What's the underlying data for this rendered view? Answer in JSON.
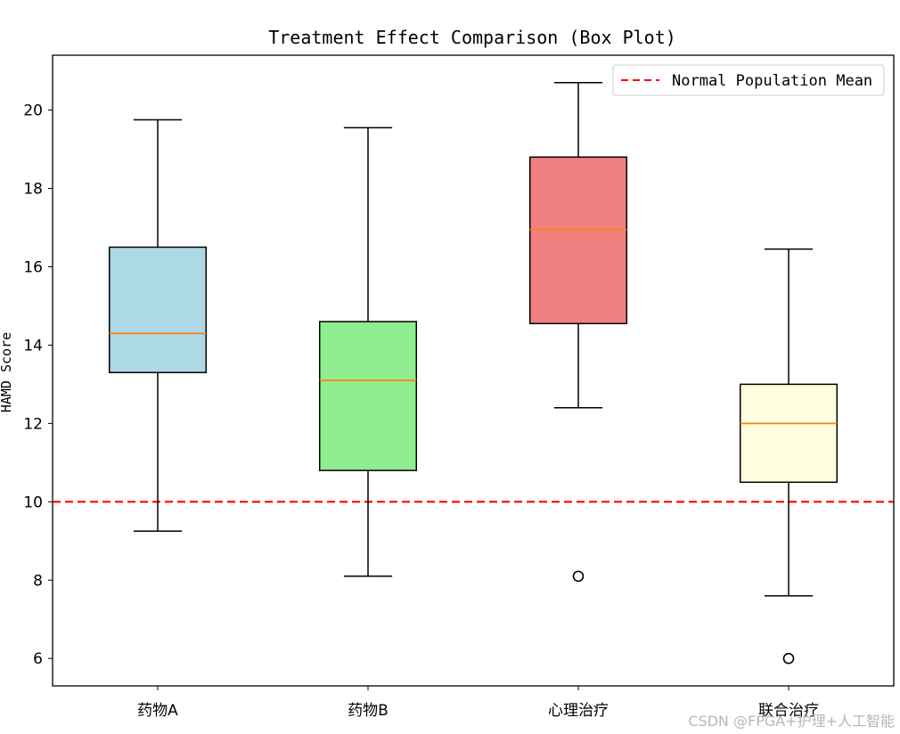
{
  "chart_data": {
    "type": "box",
    "title": "Treatment Effect Comparison (Box Plot)",
    "xlabel": "",
    "ylabel": "HAMD Score",
    "ylim": [
      5.3,
      21.4
    ],
    "yticks": [
      6,
      8,
      10,
      12,
      14,
      16,
      18,
      20
    ],
    "grid": false,
    "legend_position": "top-right",
    "categories": [
      "药物A",
      "药物B",
      "心理治疗",
      "联合治疗"
    ],
    "boxes": [
      {
        "category": "药物A",
        "whisker_low": 9.25,
        "q1": 13.3,
        "median": 14.3,
        "q3": 16.5,
        "whisker_high": 19.75,
        "outliers": [],
        "fill": "#add8e6"
      },
      {
        "category": "药物B",
        "whisker_low": 8.1,
        "q1": 10.8,
        "median": 13.1,
        "q3": 14.6,
        "whisker_high": 19.55,
        "outliers": [],
        "fill": "#90ee90"
      },
      {
        "category": "心理治疗",
        "whisker_low": 12.4,
        "q1": 14.55,
        "median": 16.95,
        "q3": 18.8,
        "whisker_high": 20.7,
        "outliers": [
          8.1
        ],
        "fill": "#f08080"
      },
      {
        "category": "联合治疗",
        "whisker_low": 7.6,
        "q1": 10.5,
        "median": 12.0,
        "q3": 13.0,
        "whisker_high": 16.45,
        "outliers": [
          6.0
        ],
        "fill": "#ffffe0"
      }
    ],
    "reference_line": {
      "label": "Normal Population Mean",
      "value": 10,
      "color": "#ff0000",
      "style": "dashed"
    },
    "median_color": "#ff7f0e"
  },
  "watermark": "CSDN @FPGA+护理+人工智能"
}
